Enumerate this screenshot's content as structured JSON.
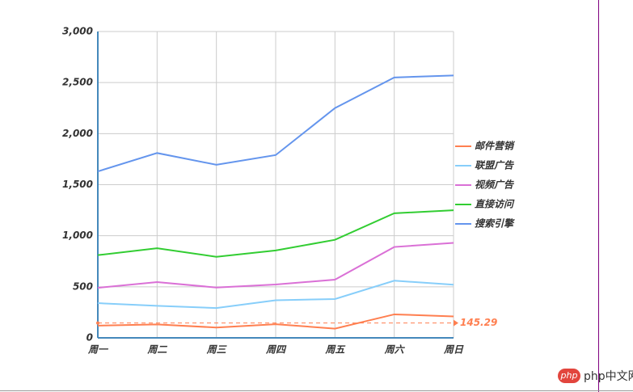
{
  "chart_data": {
    "type": "stacked-line",
    "categories": [
      "周一",
      "周二",
      "周三",
      "周四",
      "周五",
      "周六",
      "周日"
    ],
    "series": [
      {
        "name": "邮件营销",
        "color": "#ff7f50",
        "values": [
          120,
          132,
          101,
          134,
          90,
          230,
          210
        ],
        "average": 145.29
      },
      {
        "name": "联盟广告",
        "color": "#87cefa",
        "values": [
          220,
          182,
          191,
          234,
          290,
          330,
          310
        ]
      },
      {
        "name": "视频广告",
        "color": "#da70d6",
        "values": [
          150,
          232,
          201,
          154,
          190,
          330,
          410
        ]
      },
      {
        "name": "直接访问",
        "color": "#32cd32",
        "values": [
          320,
          332,
          301,
          334,
          390,
          330,
          320
        ]
      },
      {
        "name": "搜索引擎",
        "color": "#6495ed",
        "values": [
          820,
          932,
          901,
          934,
          1290,
          1330,
          1320
        ]
      }
    ],
    "ylim": [
      0,
      3000
    ],
    "yticks": [
      0,
      500,
      {
        "value": 1000,
        "label": "1,000"
      },
      {
        "value": 1500,
        "label": "1,500"
      },
      {
        "value": 2000,
        "label": "2,000"
      },
      {
        "value": 2500,
        "label": "2,500"
      },
      {
        "value": 3000,
        "label": "3,000"
      }
    ],
    "grid": true,
    "legend": "right",
    "watermark": "php中文网"
  }
}
